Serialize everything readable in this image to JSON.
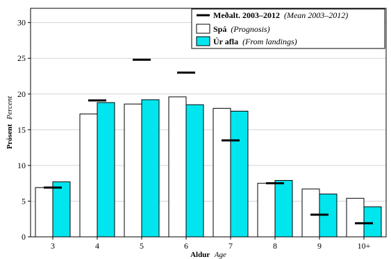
{
  "chart_data": {
    "type": "bar",
    "categories": [
      "3",
      "4",
      "5",
      "6",
      "7",
      "8",
      "9",
      "10+"
    ],
    "series": [
      {
        "name": "Spá",
        "name_en": "(Prognosis)",
        "values": [
          6.9,
          17.2,
          18.6,
          19.6,
          18.0,
          7.5,
          6.7,
          5.4
        ]
      },
      {
        "name": "Úr afla",
        "name_en": "(From landings)",
        "values": [
          7.7,
          18.8,
          19.2,
          18.5,
          17.6,
          7.9,
          6.0,
          4.2
        ]
      }
    ],
    "mean": {
      "name": "Meðalt. 2003–2012",
      "name_en": "(Mean 2003–2012)",
      "values": [
        6.9,
        19.1,
        24.8,
        23.0,
        13.5,
        7.5,
        3.1,
        1.9
      ]
    },
    "xlabel": "Aldur",
    "xlabel_en": "Age",
    "ylabel": "Prósent",
    "ylabel_en": "Percent",
    "ylim": [
      0,
      32
    ],
    "yticks": [
      0,
      5,
      10,
      15,
      20,
      25,
      30
    ],
    "grid": true,
    "legend": "top-right",
    "colors": {
      "Spá": "#ffffff",
      "Úr afla": "#00e5ee",
      "mean": "#000000",
      "grid": "#d3d3d3"
    }
  }
}
